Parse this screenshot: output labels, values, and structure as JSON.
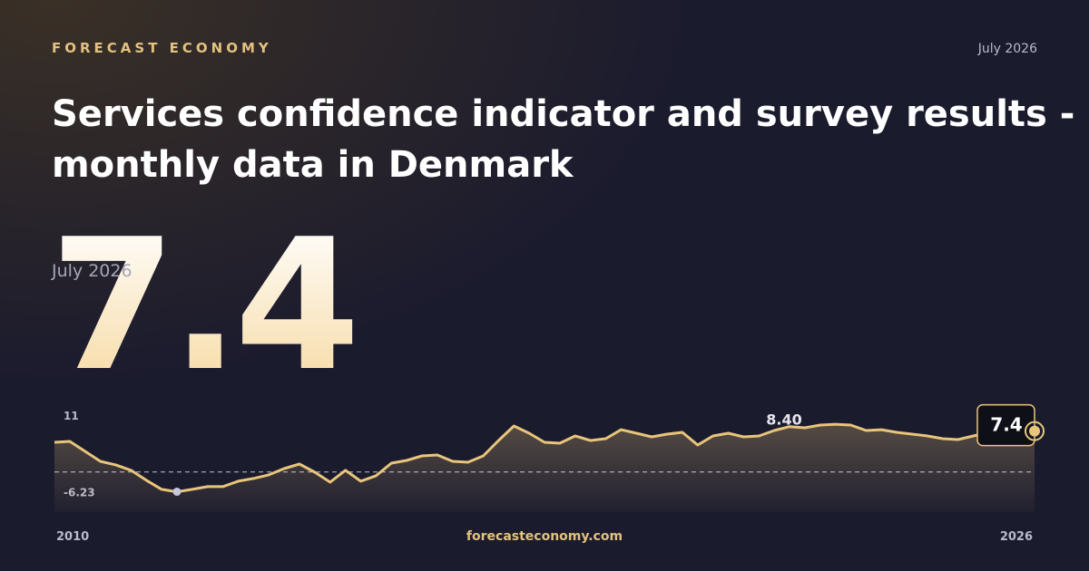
{
  "brand": "FORECAST ECONOMY",
  "date": "July 2026",
  "title": "Services confidence indicator and survey results - monthly data in Denmark",
  "footer": "forecasteconomy.com",
  "chart_data": {
    "type": "line",
    "categories": [
      "2010",
      null,
      null,
      null,
      null,
      null,
      null,
      null,
      null,
      null,
      null,
      null,
      null,
      null,
      null,
      null,
      null,
      null,
      null,
      null,
      null,
      null,
      null,
      null,
      null,
      null,
      null,
      null,
      null,
      null,
      null,
      null,
      null,
      null,
      null,
      null,
      null,
      null,
      null,
      null,
      null,
      null,
      null,
      null,
      null,
      null,
      null,
      null,
      null,
      null,
      null,
      null,
      null,
      null,
      null,
      null,
      null,
      null,
      null,
      null,
      null,
      null,
      null,
      null,
      "2026"
    ],
    "series": [
      {
        "color": "#e8c57a",
        "values": [
          4.88,
          5.08,
          2.85,
          0.61,
          -0.2,
          -1.42,
          -3.66,
          -5.69,
          -6.23,
          -5.69,
          -5.08,
          -5.08,
          -3.86,
          -3.25,
          -2.44,
          -1.02,
          0,
          -1.83,
          -4.07,
          -1.42,
          -3.86,
          -2.64,
          0.2,
          0.81,
          1.83,
          2.03,
          0.61,
          0.41,
          1.83,
          5.28,
          8.54,
          6.91,
          4.88,
          4.67,
          6.3,
          5.28,
          5.69,
          7.72,
          6.91,
          6.1,
          6.71,
          7.11,
          4.27,
          6.3,
          6.91,
          6.1,
          6.3,
          7.52,
          8.4,
          8.13,
          8.74,
          8.94,
          8.74,
          7.52,
          7.72,
          7.11,
          6.71,
          6.3,
          5.69,
          5.49,
          6.3,
          7.11,
          7.11,
          7.32,
          7.4
        ]
      }
    ],
    "ylim": [
      -10.8,
      11.6
    ],
    "yticks": [
      -6.23,
      11
    ],
    "reference_value": -1.8,
    "annotation": {
      "value": 8.4,
      "label": "8.40"
    }
  }
}
